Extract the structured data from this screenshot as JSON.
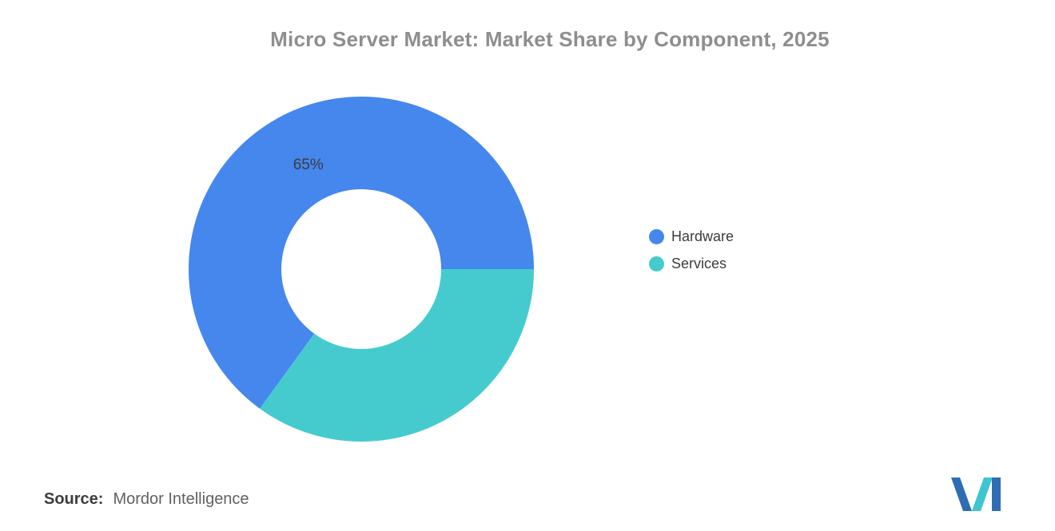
{
  "title": "Micro Server Market: Market Share by Component, 2025",
  "chart_data": {
    "type": "pie",
    "subtype": "donut",
    "title": "Micro Server Market: Market Share by Component, 2025",
    "categories": [
      "Hardware",
      "Services"
    ],
    "values": [
      65,
      35
    ],
    "colors": [
      "#4587EC",
      "#45CBCE"
    ],
    "data_labels": [
      "65%",
      ""
    ],
    "data_label_color": "#3c3c3c",
    "start_angle_deg": 0,
    "direction": "counterclockwise",
    "legend_position": "right",
    "grid": false
  },
  "legend": {
    "items": [
      {
        "label": "Hardware",
        "color": "#4587EC"
      },
      {
        "label": "Services",
        "color": "#45CBCE"
      }
    ]
  },
  "footer": {
    "source_label": "Source:",
    "source_value": "Mordor Intelligence"
  },
  "logo": {
    "name": "mordor-intelligence-logo",
    "colors": {
      "blue": "#2E6DB4",
      "teal": "#3EC6D0"
    }
  }
}
